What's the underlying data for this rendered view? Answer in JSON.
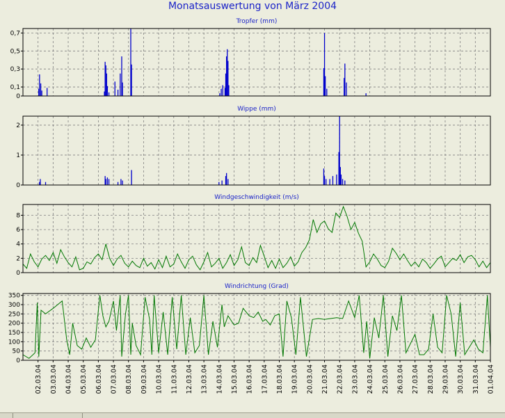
{
  "title": "Monatsauswertung von März 2004",
  "chart_data": [
    {
      "type": "bar",
      "title": "Tropfer (mm)",
      "ylim": [
        0,
        0.75
      ],
      "yticks": [
        0,
        0.1,
        0.3,
        0.5,
        0.7
      ],
      "ytick_labels": [
        "0",
        "0,1",
        "0,3",
        "0,5",
        "0,7"
      ],
      "x_unit": "days since 01.03.04 00:00 (Mar 2004)",
      "color": "#0000cc",
      "x": [
        1.05,
        1.1,
        1.18,
        1.25,
        1.6,
        5.4,
        5.45,
        5.5,
        5.55,
        5.6,
        5.7,
        6.1,
        6.3,
        6.45,
        6.55,
        6.6,
        7.15,
        7.2,
        13.05,
        13.15,
        13.25,
        13.4,
        13.45,
        13.5,
        13.55,
        13.6,
        13.65,
        19.95,
        20.0,
        20.05,
        20.15,
        21.3,
        21.35,
        21.45,
        22.75
      ],
      "values": [
        0.08,
        0.24,
        0.14,
        0.06,
        0.09,
        0.05,
        0.38,
        0.34,
        0.25,
        0.11,
        0.04,
        0.16,
        0.07,
        0.25,
        0.44,
        0.15,
        0.78,
        0.35,
        0.03,
        0.08,
        0.12,
        0.09,
        0.25,
        0.44,
        0.52,
        0.39,
        0.12,
        0.31,
        0.7,
        0.22,
        0.08,
        0.2,
        0.36,
        0.15,
        0.03
      ],
      "grid": true
    },
    {
      "type": "bar",
      "title": "Wippe (mm)",
      "ylim": [
        0,
        2.3
      ],
      "yticks": [
        0,
        1,
        2
      ],
      "ytick_labels": [
        "0",
        "1",
        "2"
      ],
      "x_unit": "days since 01.03.04 00:00 (Mar 2004)",
      "color": "#0000cc",
      "x": [
        1.1,
        1.15,
        1.5,
        5.45,
        5.5,
        5.6,
        5.7,
        6.3,
        6.5,
        6.6,
        7.2,
        13.0,
        13.2,
        13.45,
        13.5,
        13.6,
        19.95,
        20.0,
        20.1,
        20.35,
        20.55,
        20.8,
        20.95,
        21.0,
        21.05,
        21.1,
        21.2,
        21.35
      ],
      "values": [
        0.1,
        0.2,
        0.1,
        0.3,
        0.2,
        0.25,
        0.2,
        0.1,
        0.2,
        0.15,
        0.5,
        0.1,
        0.15,
        0.3,
        0.4,
        0.2,
        0.55,
        0.3,
        0.2,
        0.2,
        0.3,
        0.35,
        1.1,
        2.3,
        0.6,
        0.35,
        0.2,
        0.15
      ],
      "grid": true
    },
    {
      "type": "line",
      "title": "Windgeschwindigkeit (m/s)",
      "ylim": [
        0,
        9.5
      ],
      "yticks": [
        0,
        2,
        4,
        6,
        8
      ],
      "ytick_labels": [
        "0",
        "2",
        "4",
        "6",
        "8"
      ],
      "x_unit": "days since 01.03.04 00:00 (Mar 2004)",
      "color": "#007700",
      "x": [
        0,
        0.25,
        0.5,
        0.75,
        1,
        1.25,
        1.5,
        1.75,
        2,
        2.25,
        2.5,
        2.75,
        3,
        3.25,
        3.5,
        3.75,
        4,
        4.25,
        4.5,
        4.75,
        5,
        5.25,
        5.5,
        5.75,
        6,
        6.25,
        6.5,
        6.75,
        7,
        7.25,
        7.5,
        7.75,
        8,
        8.25,
        8.5,
        8.75,
        9,
        9.25,
        9.5,
        9.75,
        10,
        10.25,
        10.5,
        10.75,
        11,
        11.25,
        11.5,
        11.75,
        12,
        12.25,
        12.5,
        12.75,
        13,
        13.25,
        13.5,
        13.75,
        14,
        14.25,
        14.5,
        14.75,
        15,
        15.25,
        15.5,
        15.75,
        16,
        16.25,
        16.5,
        16.75,
        17,
        17.25,
        17.5,
        17.75,
        18,
        18.25,
        18.5,
        18.75,
        19,
        19.25,
        19.5,
        19.75,
        20,
        20.25,
        20.5,
        20.75,
        21,
        21.25,
        21.5,
        21.75,
        22,
        22.25,
        22.5,
        22.75,
        23,
        23.25,
        23.5,
        23.75,
        24,
        24.25,
        24.5,
        24.75,
        25,
        25.25,
        25.5,
        25.75,
        26,
        26.25,
        26.5,
        26.75,
        27,
        27.25,
        27.5,
        27.75,
        28,
        28.25,
        28.5,
        28.75,
        29,
        29.25,
        29.5,
        29.75,
        30,
        30.25,
        30.5,
        30.75,
        31
      ],
      "values": [
        1.2,
        0.6,
        2.6,
        1.5,
        0.8,
        1.9,
        2.4,
        1.7,
        2.8,
        1.3,
        3.2,
        2.2,
        1.4,
        0.8,
        2.2,
        0.4,
        0.6,
        1.5,
        1.2,
        2.1,
        2.6,
        1.8,
        4.0,
        2.0,
        1.0,
        1.9,
        2.4,
        1.3,
        0.8,
        1.6,
        1.0,
        0.7,
        2.0,
        0.9,
        1.4,
        0.5,
        1.8,
        0.7,
        2.3,
        0.8,
        1.2,
        2.6,
        1.5,
        0.6,
        1.8,
        2.3,
        1.1,
        0.4,
        1.5,
        2.8,
        0.8,
        1.3,
        2.0,
        0.6,
        1.4,
        2.5,
        1.0,
        1.8,
        3.6,
        1.4,
        1.0,
        2.1,
        1.4,
        3.8,
        2.3,
        0.7,
        1.7,
        0.6,
        1.9,
        0.7,
        1.3,
        2.2,
        0.9,
        1.5,
        2.8,
        3.5,
        4.6,
        7.4,
        5.6,
        6.8,
        7.2,
        6.1,
        5.6,
        8.3,
        7.7,
        9.2,
        7.8,
        6.0,
        7.0,
        5.5,
        4.4,
        0.8,
        1.5,
        2.6,
        1.9,
        1.0,
        0.7,
        1.6,
        3.4,
        2.7,
        1.8,
        2.6,
        1.7,
        0.9,
        1.5,
        0.8,
        1.9,
        1.4,
        0.6,
        1.2,
        1.9,
        2.3,
        0.8,
        1.4,
        2.0,
        1.7,
        2.5,
        1.4,
        2.2,
        2.4,
        1.8,
        0.8,
        1.6,
        0.7,
        1.4
      ],
      "grid": true
    },
    {
      "type": "line",
      "title": "Windrichtung (Grad)",
      "ylim": [
        0,
        360
      ],
      "yticks": [
        0,
        50,
        100,
        150,
        200,
        250,
        300,
        350
      ],
      "ytick_labels": [
        "0",
        "50",
        "100",
        "150",
        "200",
        "250",
        "300",
        "350"
      ],
      "x_unit": "days since 01.03.04 00:00 (Mar 2004)",
      "color": "#007700",
      "x": [
        0,
        0.4,
        0.8,
        0.95,
        1.05,
        1.2,
        1.5,
        2,
        2.3,
        2.6,
        2.9,
        3.1,
        3.3,
        3.6,
        3.9,
        4.2,
        4.5,
        4.8,
        5.1,
        5.3,
        5.5,
        5.7,
        6,
        6.2,
        6.45,
        6.55,
        6.8,
        7,
        7.15,
        7.25,
        7.5,
        7.8,
        8.1,
        8.4,
        8.55,
        8.7,
        9,
        9.3,
        9.6,
        9.9,
        10.2,
        10.5,
        10.8,
        11.1,
        11.4,
        11.7,
        12,
        12.3,
        12.6,
        12.9,
        13.2,
        13.35,
        13.6,
        14,
        14.3,
        14.6,
        15,
        15.3,
        15.6,
        15.9,
        16.1,
        16.4,
        16.7,
        17,
        17.25,
        17.5,
        17.8,
        18.1,
        18.4,
        18.8,
        19.2,
        19.6,
        20,
        20.4,
        20.8,
        21.2,
        21.6,
        22,
        22.3,
        22.6,
        22.8,
        23,
        23.3,
        23.6,
        23.9,
        24.2,
        24.5,
        24.8,
        25.1,
        25.4,
        25.7,
        26,
        26.3,
        26.6,
        26.9,
        27.2,
        27.5,
        27.8,
        28.1,
        28.4,
        28.7,
        29,
        29.3,
        29.6,
        29.9,
        30.2,
        30.5,
        30.8,
        31
      ],
      "values": [
        30,
        10,
        40,
        310,
        20,
        270,
        250,
        280,
        300,
        320,
        110,
        30,
        200,
        80,
        60,
        120,
        70,
        110,
        350,
        240,
        180,
        210,
        320,
        160,
        350,
        20,
        250,
        350,
        30,
        200,
        80,
        30,
        340,
        220,
        30,
        350,
        40,
        260,
        30,
        340,
        60,
        350,
        30,
        230,
        40,
        80,
        350,
        30,
        210,
        70,
        300,
        180,
        240,
        190,
        200,
        280,
        240,
        230,
        260,
        210,
        220,
        190,
        240,
        250,
        20,
        320,
        230,
        30,
        340,
        20,
        220,
        225,
        220,
        225,
        230,
        225,
        320,
        230,
        350,
        40,
        210,
        10,
        230,
        120,
        350,
        20,
        240,
        160,
        350,
        40,
        90,
        140,
        30,
        30,
        60,
        250,
        70,
        40,
        350,
        250,
        20,
        310,
        30,
        70,
        110,
        60,
        40,
        350,
        70
      ],
      "grid": true
    }
  ],
  "x_axis": {
    "date_labels": [
      "02.03.04",
      "03.03.04",
      "04.03.04",
      "05.03.04",
      "06.03.04",
      "07.03.04",
      "08.03.04",
      "09.03.04",
      "10.03.04",
      "11.03.04",
      "12.03.04",
      "13.03.04",
      "14.03.04",
      "15.03.04",
      "16.03.04",
      "17.03.04",
      "18.03.04",
      "19.03.04",
      "20.03.04",
      "21.03.04",
      "22.03.04",
      "23.03.04",
      "24.03.04",
      "25.03.04",
      "26.03.04",
      "27.03.04",
      "28.03.04",
      "29.03.04",
      "30.03.04",
      "31.03.04",
      "01.04.04"
    ]
  }
}
